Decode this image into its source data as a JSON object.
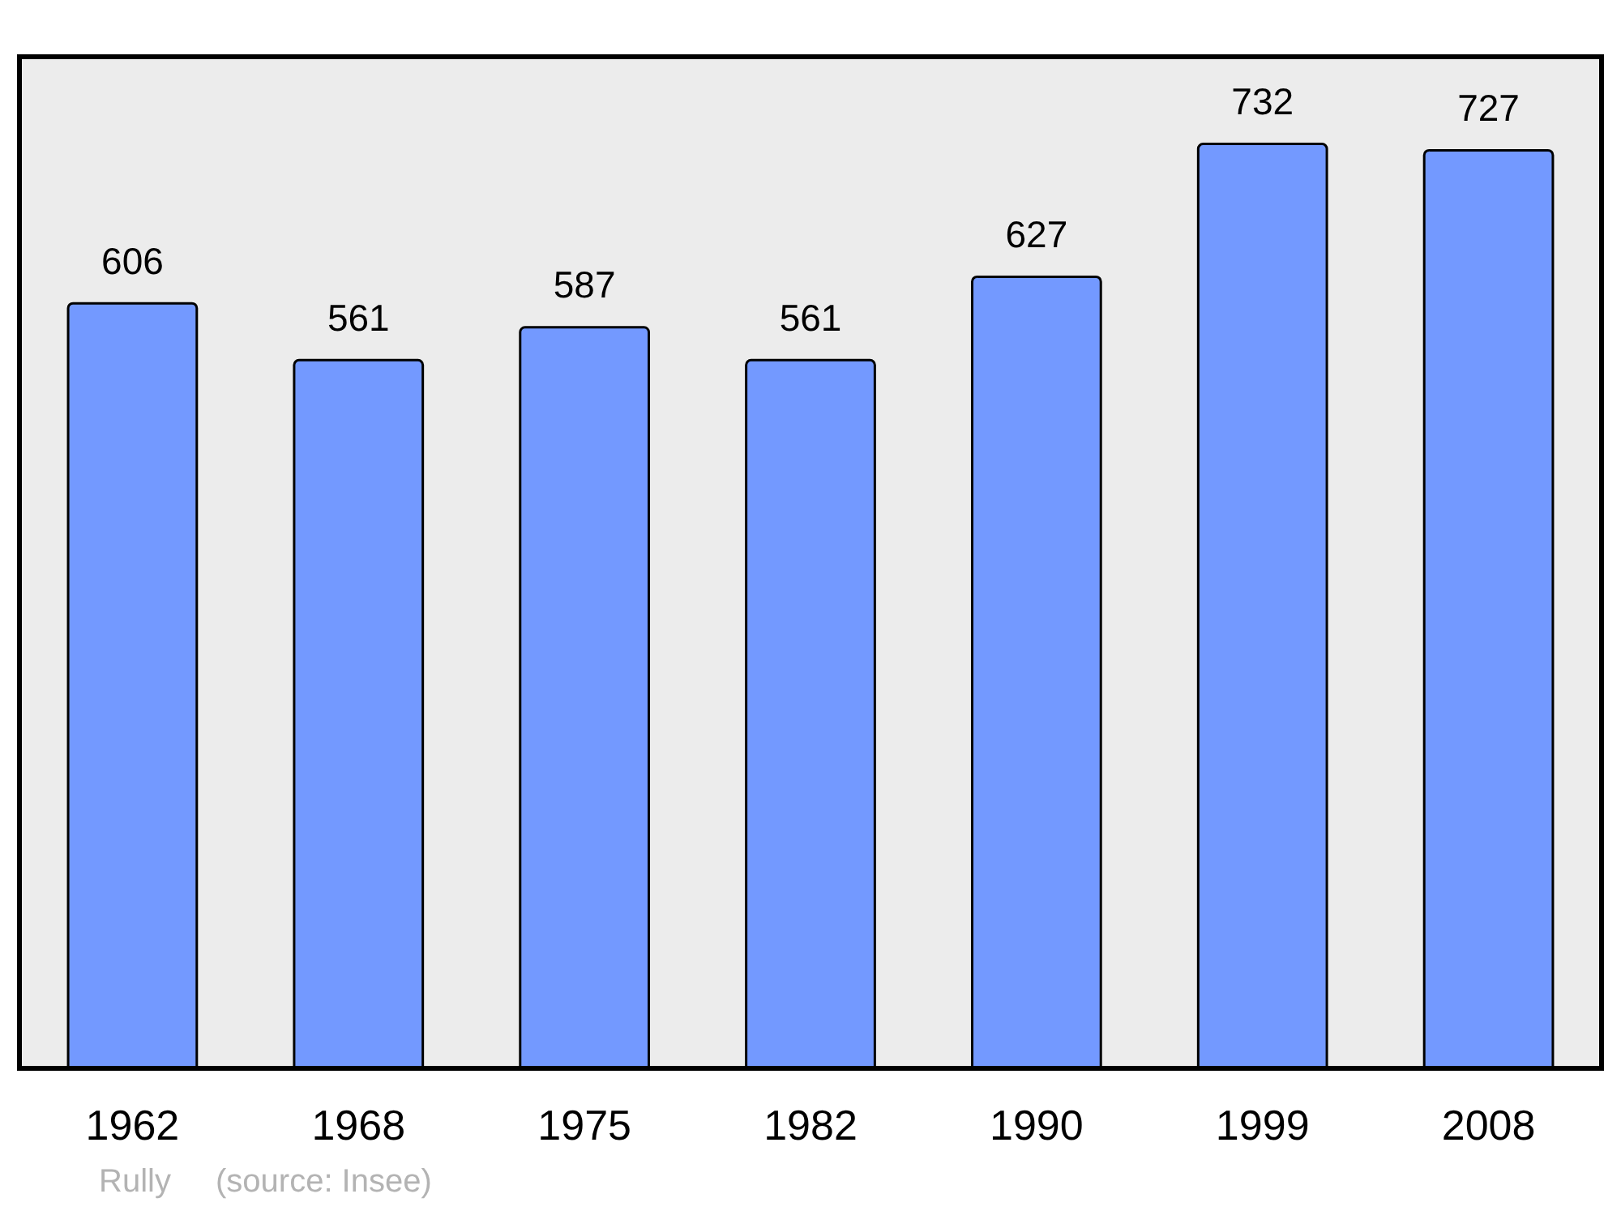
{
  "chart_data": {
    "type": "bar",
    "categories": [
      "1962",
      "1968",
      "1975",
      "1982",
      "1990",
      "1999",
      "2008"
    ],
    "values": [
      606,
      561,
      587,
      561,
      627,
      732,
      727
    ],
    "color": "#7399ff",
    "data_labels": true,
    "tick_labels": "x",
    "annotations": [
      "Rully",
      "(source: Insee)"
    ]
  }
}
